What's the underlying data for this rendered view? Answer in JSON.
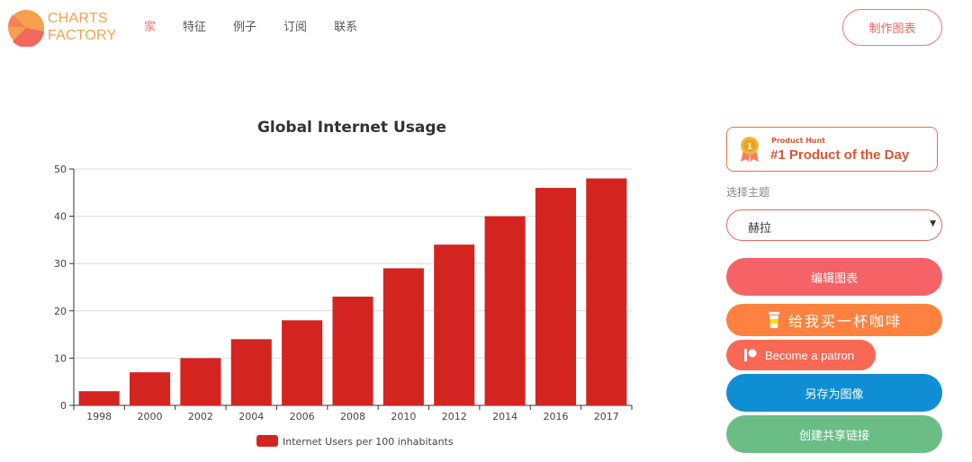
{
  "header": {
    "logo": {
      "line1": "CHARTS",
      "line2": "FACTORY",
      "icon": "pie-logo-icon"
    },
    "nav": [
      {
        "label": "家",
        "active": true
      },
      {
        "label": "特征",
        "active": false
      },
      {
        "label": "例子",
        "active": false
      },
      {
        "label": "订阅",
        "active": false
      },
      {
        "label": "联系",
        "active": false
      }
    ],
    "make_chart_label": "制作图表"
  },
  "chart_data": {
    "type": "bar",
    "title": "Global Internet Usage",
    "categories": [
      "1998",
      "2000",
      "2002",
      "2004",
      "2006",
      "2008",
      "2010",
      "2012",
      "2014",
      "2016",
      "2017"
    ],
    "series": [
      {
        "name": "Internet Users per 100 inhabitants",
        "values": [
          3,
          7,
          10,
          14,
          18,
          23,
          29,
          34,
          40,
          46,
          48
        ],
        "color": "#d42420"
      }
    ],
    "xlabel": "",
    "ylabel": "",
    "ylim": [
      0,
      50
    ],
    "yticks": [
      "0",
      "10",
      "20",
      "30",
      "40",
      "50"
    ],
    "grid": true,
    "legend_position": "bottom"
  },
  "sidebar": {
    "product_hunt": {
      "small": "Product Hunt",
      "big": "#1 Product of the Day",
      "icon": "medal-icon"
    },
    "theme_label": "选择主题",
    "theme_value": "赫拉",
    "edit_label": "编辑图表",
    "coffee_label": "给我买一杯咖啡",
    "patreon_label": "Become a patron",
    "save_label": "另存为图像",
    "share_label": "创建共享链接"
  },
  "colors": {
    "accent": "#f07070",
    "bar": "#d42420",
    "edit": "#f56366",
    "coffee": "#ff813f",
    "patreon": "#f96854",
    "save": "#0f8ed4",
    "share": "#6bbd86"
  }
}
